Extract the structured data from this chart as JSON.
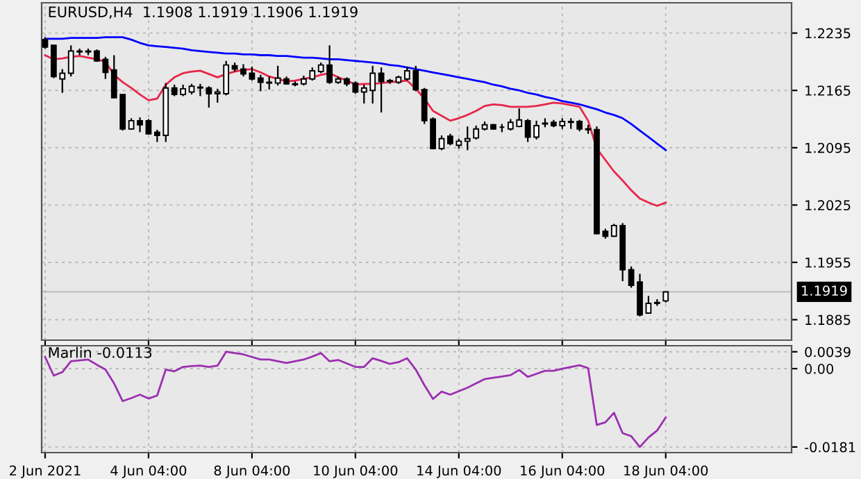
{
  "chart_data": [
    {
      "type": "candlestick",
      "title": "EURUSD,H4  1.1908 1.1919 1.1906 1.1919",
      "categories": [
        null,
        null,
        null,
        null,
        null,
        null,
        null,
        null,
        null,
        null,
        null,
        null,
        null,
        null,
        null,
        null,
        null,
        null,
        null,
        null,
        null,
        null,
        null,
        null,
        null,
        null,
        null,
        null,
        null,
        null,
        null,
        null,
        null,
        null,
        null,
        null,
        null,
        null,
        null,
        null,
        null,
        null,
        null,
        null,
        null,
        null,
        null,
        null,
        null,
        null,
        null,
        null,
        null,
        null,
        null,
        null,
        null,
        null,
        null,
        null,
        null,
        null,
        null,
        null,
        null,
        null,
        null,
        null,
        null,
        null,
        null,
        null,
        null,
        null,
        null,
        null,
        null,
        null,
        null,
        null,
        null,
        null,
        null,
        null,
        null,
        null,
        null
      ],
      "ohlc": [
        [
          1.2227,
          1.223,
          1.2216,
          1.2218
        ],
        [
          1.222,
          1.222,
          1.218,
          1.2182
        ],
        [
          1.2179,
          1.2191,
          1.2162,
          1.2186
        ],
        [
          1.2186,
          1.222,
          1.2182,
          1.2213
        ],
        [
          1.2213,
          1.2216,
          1.2208,
          1.2212
        ],
        [
          1.2212,
          1.2216,
          1.2208,
          1.2213
        ],
        [
          1.2213,
          1.2215,
          1.22,
          1.2201
        ],
        [
          1.2203,
          1.2206,
          1.2179,
          1.2187
        ],
        [
          1.219,
          1.2208,
          1.2156,
          1.2156
        ],
        [
          1.216,
          1.216,
          1.2116,
          1.2118
        ],
        [
          1.2118,
          1.2131,
          1.2117,
          1.2128
        ],
        [
          1.2128,
          1.2132,
          1.2114,
          1.2123
        ],
        [
          1.2128,
          1.213,
          1.2111,
          1.2112
        ],
        [
          1.2114,
          1.2117,
          1.2102,
          1.211
        ],
        [
          1.211,
          1.2174,
          1.2102,
          1.2168
        ],
        [
          1.2168,
          1.2172,
          1.2158,
          1.216
        ],
        [
          1.216,
          1.2172,
          1.2158,
          1.2167
        ],
        [
          1.2163,
          1.2173,
          1.216,
          1.217
        ],
        [
          1.2168,
          1.2173,
          1.2158,
          1.2169
        ],
        [
          1.2168,
          1.217,
          1.2144,
          1.2161
        ],
        [
          1.2161,
          1.2167,
          1.215,
          1.2163
        ],
        [
          1.2161,
          1.2201,
          1.2159,
          1.2196
        ],
        [
          1.2195,
          1.2199,
          1.2188,
          1.2191
        ],
        [
          1.2191,
          1.2197,
          1.2182,
          1.2185
        ],
        [
          1.2186,
          1.2194,
          1.2177,
          1.2179
        ],
        [
          1.218,
          1.2184,
          1.2164,
          1.2175
        ],
        [
          1.2175,
          1.2182,
          1.2166,
          1.2174
        ],
        [
          1.2174,
          1.2195,
          1.2171,
          1.218
        ],
        [
          1.2179,
          1.2182,
          1.2172,
          1.2173
        ],
        [
          1.2173,
          1.2176,
          1.217,
          1.2172
        ],
        [
          1.2173,
          1.2183,
          1.2171,
          1.2179
        ],
        [
          1.2179,
          1.2193,
          1.2177,
          1.2189
        ],
        [
          1.2188,
          1.2199,
          1.2186,
          1.2196
        ],
        [
          1.2196,
          1.222,
          1.2173,
          1.2175
        ],
        [
          1.2175,
          1.2182,
          1.2173,
          1.2179
        ],
        [
          1.2179,
          1.2181,
          1.217,
          1.2173
        ],
        [
          1.2174,
          1.2176,
          1.2161,
          1.2163
        ],
        [
          1.2163,
          1.2172,
          1.2149,
          1.2168
        ],
        [
          1.2165,
          1.2195,
          1.2149,
          1.2186
        ],
        [
          1.2186,
          1.2193,
          1.2138,
          1.2176
        ],
        [
          1.2176,
          1.2179,
          1.2173,
          1.2177
        ],
        [
          1.2175,
          1.2183,
          1.2173,
          1.2181
        ],
        [
          1.2179,
          1.2194,
          1.2177,
          1.2189
        ],
        [
          1.2189,
          1.2195,
          1.2164,
          1.2166
        ],
        [
          1.2166,
          1.2168,
          1.2124,
          1.2128
        ],
        [
          1.213,
          1.2132,
          1.2093,
          1.2094
        ],
        [
          1.2094,
          1.211,
          1.2092,
          1.2106
        ],
        [
          1.2109,
          1.2112,
          1.2098,
          1.21
        ],
        [
          1.2098,
          1.2106,
          1.2094,
          1.2103
        ],
        [
          1.2103,
          1.2121,
          1.2092,
          1.2106
        ],
        [
          1.2107,
          1.2122,
          1.2105,
          1.2118
        ],
        [
          1.2118,
          1.2127,
          1.2116,
          1.2123
        ],
        [
          1.2123,
          1.2124,
          1.2117,
          1.2118
        ],
        [
          1.212,
          1.2124,
          1.2114,
          1.212
        ],
        [
          1.2118,
          1.213,
          1.2116,
          1.2126
        ],
        [
          1.2121,
          1.2143,
          1.212,
          1.2129
        ],
        [
          1.2128,
          1.213,
          1.2102,
          1.2108
        ],
        [
          1.2108,
          1.2128,
          1.2105,
          1.2122
        ],
        [
          1.2124,
          1.2131,
          1.212,
          1.2125
        ],
        [
          1.2126,
          1.2129,
          1.212,
          1.2122
        ],
        [
          1.2122,
          1.2131,
          1.2118,
          1.2127
        ],
        [
          1.2126,
          1.2131,
          1.2118,
          1.2127
        ],
        [
          1.2127,
          1.2129,
          1.2115,
          1.2118
        ],
        [
          1.2118,
          1.2123,
          1.2112,
          1.2117
        ],
        [
          1.2117,
          1.2121,
          1.1989,
          1.199
        ],
        [
          1.1993,
          1.1996,
          1.1984,
          1.1987
        ],
        [
          1.1987,
          1.2002,
          1.1986,
          1.2
        ],
        [
          1.2,
          1.2003,
          1.1932,
          1.1946
        ],
        [
          1.1946,
          1.195,
          1.1924,
          1.1927
        ],
        [
          1.1931,
          1.1941,
          1.1889,
          1.1891
        ],
        [
          1.1893,
          1.1914,
          1.1893,
          1.1905
        ],
        [
          1.1905,
          1.191,
          1.1902,
          1.1906
        ],
        [
          1.1908,
          1.1919,
          1.1906,
          1.1919
        ],
        null,
        null,
        null,
        null,
        null,
        null,
        null,
        null,
        null,
        null,
        null,
        null,
        null,
        null
      ],
      "series": [
        {
          "type": "line",
          "color": "#0000ff",
          "values": [
            1.2228,
            1.2228,
            1.2228,
            1.2229,
            1.2229,
            1.2229,
            1.2229,
            1.223,
            1.223,
            1.223,
            1.2227,
            1.2223,
            1.222,
            1.2219,
            1.2218,
            1.2217,
            1.2216,
            1.2214,
            1.2213,
            1.2212,
            1.2211,
            1.221,
            1.221,
            1.2209,
            1.2209,
            1.2208,
            1.2208,
            1.2207,
            1.2207,
            1.2206,
            1.2205,
            1.2205,
            1.2204,
            1.2203,
            1.2203,
            1.2202,
            1.2201,
            1.22,
            1.2199,
            1.2198,
            1.2196,
            1.2195,
            1.2193,
            1.2191,
            1.2189,
            1.2187,
            1.2185,
            1.2183,
            1.2181,
            1.2179,
            1.2177,
            1.2175,
            1.2172,
            1.217,
            1.2167,
            1.2165,
            1.2162,
            1.216,
            1.2157,
            1.2155,
            1.2152,
            1.215,
            1.2148,
            1.2145,
            1.2142,
            1.2138,
            1.2135,
            1.2131,
            1.2124,
            1.2116,
            1.2108,
            1.21,
            1.2092,
            null,
            null,
            null,
            null,
            null,
            null,
            null,
            null,
            null,
            null,
            null,
            null,
            null,
            null
          ]
        },
        {
          "type": "line",
          "color": "#e8264a",
          "values": [
            1.2208,
            1.2203,
            1.2204,
            1.2206,
            1.2207,
            1.2205,
            1.2203,
            1.22,
            1.2184,
            1.2175,
            1.2168,
            1.216,
            1.2153,
            1.2155,
            1.2172,
            1.2181,
            1.2186,
            1.2188,
            1.2189,
            1.2185,
            1.2181,
            1.2185,
            1.2188,
            1.219,
            1.2191,
            1.2187,
            1.2182,
            1.2179,
            1.2176,
            1.2177,
            1.2179,
            1.2181,
            1.2184,
            1.2186,
            1.2181,
            1.2177,
            1.2172,
            1.2173,
            1.2173,
            1.2174,
            1.2175,
            1.2176,
            1.2177,
            1.2167,
            1.2155,
            1.214,
            1.2134,
            1.2128,
            1.2131,
            1.2135,
            1.214,
            1.2146,
            1.2148,
            1.2147,
            1.2145,
            1.2145,
            1.2145,
            1.2146,
            1.2148,
            1.215,
            1.2149,
            1.2147,
            1.2145,
            1.2128,
            1.2094,
            1.208,
            1.2066,
            1.2055,
            1.2043,
            1.2033,
            1.2028,
            1.2024,
            1.2028,
            null,
            null,
            null,
            null,
            null,
            null,
            null,
            null,
            null,
            null,
            null,
            null,
            null,
            null
          ]
        }
      ],
      "ylim": [
        1.186,
        1.2272
      ],
      "yticks": [
        1.2235,
        1.2165,
        1.2095,
        1.2025,
        1.1955,
        1.1885
      ],
      "ref_lines": [
        {
          "axis": "y",
          "value": 1.1919,
          "label": "1.1919",
          "color": "#c0c0c0"
        }
      ],
      "grid": true,
      "tick_labels": "y"
    },
    {
      "type": "line",
      "title": "Marlin -0.0113",
      "categories": [
        "2 Jun 2021",
        null,
        null,
        null,
        null,
        null,
        null,
        null,
        null,
        null,
        null,
        null,
        "4 Jun 04:00",
        null,
        null,
        null,
        null,
        null,
        null,
        null,
        null,
        null,
        null,
        null,
        "8 Jun 04:00",
        null,
        null,
        null,
        null,
        null,
        null,
        null,
        null,
        null,
        null,
        null,
        "10 Jun 04:00",
        null,
        null,
        null,
        null,
        null,
        null,
        null,
        null,
        null,
        null,
        null,
        "14 Jun 04:00",
        null,
        null,
        null,
        null,
        null,
        null,
        null,
        null,
        null,
        null,
        null,
        "16 Jun 04:00",
        null,
        null,
        null,
        null,
        null,
        null,
        null,
        null,
        null,
        null,
        null,
        "18 Jun 04:00",
        null,
        null,
        null,
        null,
        null,
        null,
        null,
        null,
        null,
        null,
        null,
        null,
        null,
        null
      ],
      "series": [
        {
          "color": "#9b30b0",
          "values": [
            0.0027,
            -0.0016,
            -0.0008,
            0.0017,
            0.0019,
            0.0021,
            0.0009,
            -0.0002,
            -0.0034,
            -0.0075,
            -0.0068,
            -0.006,
            -0.0069,
            -0.0062,
            -0.0002,
            -0.0006,
            0.0004,
            0.0006,
            0.0007,
            0.0004,
            0.0007,
            0.0039,
            0.0036,
            0.0033,
            0.0027,
            0.0021,
            0.0021,
            0.0017,
            0.0013,
            0.0017,
            0.0021,
            0.0028,
            0.0036,
            0.0017,
            0.002,
            0.0012,
            0.0004,
            0.0004,
            0.0024,
            0.0018,
            0.0011,
            0.0015,
            0.0024,
            -0.0002,
            -0.0038,
            -0.007,
            -0.0053,
            -0.006,
            -0.0052,
            -0.0044,
            -0.0034,
            -0.0024,
            -0.0021,
            -0.0018,
            -0.0015,
            -0.0003,
            -0.0019,
            -0.0012,
            -0.0005,
            -0.0005,
            0.0,
            0.0004,
            0.0008,
            0.0001,
            -0.013,
            -0.0124,
            -0.0102,
            -0.0149,
            -0.0156,
            -0.0181,
            -0.0159,
            -0.0143,
            -0.0113,
            null,
            null,
            null,
            null,
            null,
            null,
            null,
            null,
            null,
            null,
            null,
            null,
            null,
            null
          ]
        }
      ],
      "ylim": [
        -0.0194,
        0.0053
      ],
      "yticks": [
        0.0039,
        {
          "value": 0,
          "label": "0.00"
        },
        -0.0181
      ],
      "grid": true
    }
  ]
}
